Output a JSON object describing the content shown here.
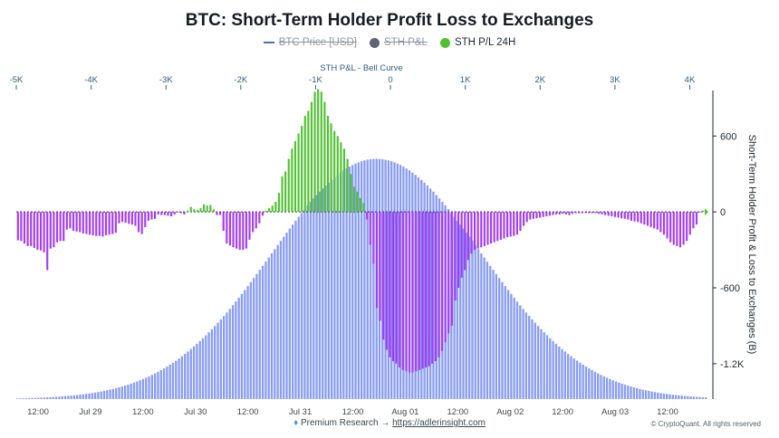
{
  "chart_data": {
    "type": "bar",
    "title": "BTC: Short-Term Holder Profit Loss to Exchanges",
    "legend": [
      {
        "name": "BTC Price [USD]",
        "symbol": "line",
        "color": "#4a6fbd",
        "hidden": true
      },
      {
        "name": "STH P&L",
        "symbol": "dot",
        "color": "#5f6474",
        "hidden": true
      },
      {
        "name": "STH P/L 24H",
        "symbol": "dot",
        "color": "#52c234",
        "hidden": false
      }
    ],
    "top_axis": {
      "label": "STH P&L - Bell Curve",
      "ticks": [
        "-5K",
        "-4K",
        "-3K",
        "-2K",
        "-1K",
        "0",
        "1K",
        "2K",
        "3K",
        "4K"
      ],
      "range": [
        -5000,
        4200
      ]
    },
    "y_axis": {
      "label": "Short-Term Holder Profit & Loss to Exchanges (B)",
      "ticks": [
        "600",
        "0",
        "-600",
        "-1.2K"
      ],
      "tick_values": [
        600,
        0,
        -600,
        -1200
      ],
      "range": [
        -1480,
        960
      ]
    },
    "x_axis": {
      "ticks": [
        "12:00",
        "Jul 29",
        "12:00",
        "Jul 30",
        "12:00",
        "Jul 31",
        "12:00",
        "Aug 01",
        "12:00",
        "Aug 02",
        "12:00",
        "Aug 03",
        "12:00"
      ],
      "start": "Jul 28 08:00",
      "interval_hours": 1
    },
    "bell_curve": {
      "mean": -200,
      "std": 1400,
      "peak": 420,
      "color": "#7f95f2"
    },
    "colors": {
      "positive": "#52c234",
      "negative": "#a43df0"
    },
    "series": [
      {
        "name": "STH P/L 24H",
        "values": [
          -225,
          -230,
          -250,
          -270,
          -270,
          -285,
          -300,
          -305,
          -320,
          -460,
          -290,
          -280,
          -240,
          -230,
          -230,
          -140,
          -130,
          -150,
          -155,
          -160,
          -170,
          -175,
          -180,
          -185,
          -190,
          -190,
          -195,
          -185,
          -180,
          -175,
          -165,
          -90,
          -80,
          -85,
          -95,
          -100,
          -110,
          -160,
          -175,
          -120,
          -70,
          -60,
          -55,
          -20,
          -25,
          -25,
          -30,
          -35,
          -20,
          -5,
          -10,
          -20,
          10,
          40,
          20,
          15,
          30,
          60,
          50,
          55,
          20,
          -25,
          -25,
          -150,
          -250,
          -265,
          -280,
          -290,
          -300,
          -300,
          -290,
          -220,
          -160,
          -130,
          -90,
          -30,
          10,
          30,
          50,
          80,
          150,
          280,
          320,
          420,
          500,
          560,
          620,
          680,
          760,
          800,
          870,
          950,
          970,
          950,
          870,
          760,
          700,
          640,
          600,
          550,
          500,
          420,
          300,
          200,
          160,
          110,
          70,
          -60,
          -260,
          -410,
          -760,
          -860,
          -1010,
          -1090,
          -1150,
          -1180,
          -1200,
          -1230,
          -1250,
          -1260,
          -1270,
          -1270,
          -1260,
          -1250,
          -1240,
          -1230,
          -1220,
          -1200,
          -1180,
          -1150,
          -1100,
          -1030,
          -960,
          -900,
          -700,
          -600,
          -520,
          -460,
          -380,
          -330,
          -300,
          -290,
          -280,
          -270,
          -260,
          -250,
          -240,
          -230,
          -220,
          -210,
          -200,
          -195,
          -190,
          -180,
          -150,
          -110,
          -80,
          -60,
          -55,
          -50,
          -45,
          -40,
          -35,
          -30,
          -25,
          -20,
          -20,
          -15,
          -20,
          -25,
          -15,
          -10,
          -10,
          -10,
          -10,
          -10,
          -10,
          -10,
          -15,
          -20,
          -25,
          -30,
          -35,
          -40,
          -45,
          -50,
          -55,
          -60,
          -70,
          -75,
          -80,
          -90,
          -100,
          -110,
          -120,
          -130,
          -140,
          -160,
          -180,
          -210,
          -240,
          -260,
          -270,
          -280,
          -260,
          -230,
          -180,
          -130,
          -100,
          -5,
          10
        ]
      }
    ]
  },
  "footer": {
    "diamond_icon": "diamond-icon",
    "text": "Premium Research →",
    "link": "https://adlerinsight.com",
    "copyright": "© CryptoQuant. All rights reserved"
  }
}
